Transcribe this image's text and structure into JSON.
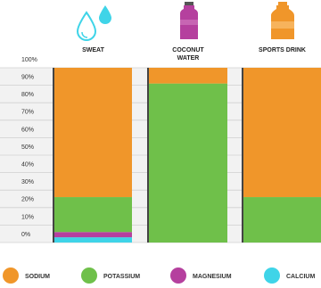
{
  "chart_data": {
    "type": "stacked-bar",
    "categories": [
      "SWEAT",
      "COCONUT WATER",
      "SPORTS DRINK"
    ],
    "series": [
      {
        "name": "SODIUM",
        "color": "#f0962a",
        "values": [
          74,
          9,
          74
        ]
      },
      {
        "name": "POTASSIUM",
        "color": "#6fc04a",
        "values": [
          20,
          91,
          26
        ]
      },
      {
        "name": "MAGNESIUM",
        "color": "#b5409e",
        "values": [
          3,
          0,
          0
        ]
      },
      {
        "name": "CALCIUM",
        "color": "#3fd4e8",
        "values": [
          3,
          0,
          0
        ]
      }
    ],
    "ylim": [
      0,
      100
    ],
    "yticks": [
      {
        "value": 0,
        "label": "0%"
      },
      {
        "value": 10,
        "label": "10%"
      },
      {
        "value": 20,
        "label": "20%"
      },
      {
        "value": 30,
        "label": "30%"
      },
      {
        "value": 40,
        "label": "40%"
      },
      {
        "value": 50,
        "label": "50%"
      },
      {
        "value": 60,
        "label": "60%"
      },
      {
        "value": 70,
        "label": "70%"
      },
      {
        "value": 80,
        "label": "80%"
      },
      {
        "value": 90,
        "label": "90%"
      },
      {
        "value": 100,
        "label": "100%"
      }
    ],
    "grid": true
  }
}
